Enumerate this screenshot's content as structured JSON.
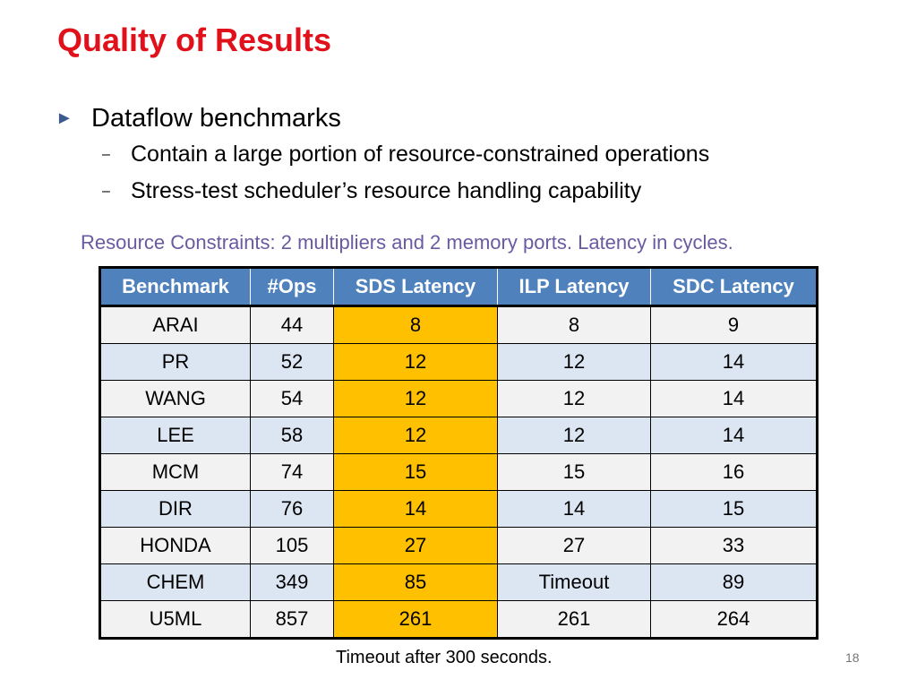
{
  "slide": {
    "title": "Quality of Results",
    "bullet_main": "Dataflow benchmarks",
    "sub_bullets": [
      "Contain a large portion of resource-constrained operations",
      "Stress-test scheduler’s resource handling capability"
    ],
    "constraint_note": "Resource Constraints: 2 multipliers and 2 memory ports. Latency in cycles.",
    "footer_note": "Timeout after 300 seconds.",
    "page_number": "18"
  },
  "table": {
    "headers": [
      "Benchmark",
      "#Ops",
      "SDS Latency",
      "ILP Latency",
      "SDC Latency"
    ],
    "rows": [
      [
        "ARAI",
        "44",
        "8",
        "8",
        "9"
      ],
      [
        "PR",
        "52",
        "12",
        "12",
        "14"
      ],
      [
        "WANG",
        "54",
        "12",
        "12",
        "14"
      ],
      [
        "LEE",
        "58",
        "12",
        "12",
        "14"
      ],
      [
        "MCM",
        "74",
        "15",
        "15",
        "16"
      ],
      [
        "DIR",
        "76",
        "14",
        "14",
        "15"
      ],
      [
        "HONDA",
        "105",
        "27",
        "27",
        "33"
      ],
      [
        "CHEM",
        "349",
        "85",
        "Timeout",
        "89"
      ],
      [
        "U5ML",
        "857",
        "261",
        "261",
        "264"
      ]
    ]
  },
  "colors": {
    "title": "#e0111a",
    "header_bg": "#4f81bd",
    "highlight": "#ffc000",
    "note": "#6a5aa0"
  }
}
